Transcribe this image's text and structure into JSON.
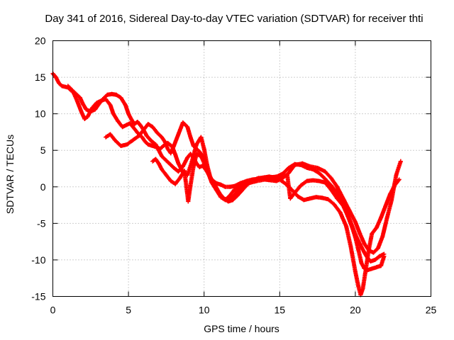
{
  "chart_data": {
    "type": "scatter",
    "title": "Day 341 of 2016, Sidereal Day-to-day VTEC variation (SDTVAR) for receiver thti",
    "xlabel": "GPS time / hours",
    "ylabel": "SDTVAR / TECUs",
    "xlim": [
      0,
      25
    ],
    "ylim": [
      -15,
      20
    ],
    "xticks": [
      0,
      5,
      10,
      15,
      20,
      25
    ],
    "yticks": [
      -15,
      -10,
      -5,
      0,
      5,
      10,
      15,
      20
    ],
    "grid": true,
    "marker": "plus",
    "color": "#ff0000",
    "series": [
      {
        "x": [
          0.0,
          0.2,
          0.4,
          0.6,
          0.8,
          1.0,
          1.2,
          1.5,
          1.8,
          2.0,
          2.2,
          2.5,
          2.8,
          3.0,
          3.3,
          3.6,
          3.9,
          4.2,
          4.5,
          4.8,
          5.0,
          5.2,
          5.4,
          5.6,
          5.8,
          6.0,
          6.2,
          6.5,
          6.8,
          7.0,
          7.2,
          7.5,
          7.8,
          8.0,
          8.3,
          8.6,
          8.9,
          9.1,
          9.3,
          9.5,
          9.7,
          9.9,
          10.1,
          10.3,
          10.5,
          10.8,
          11.1,
          11.4,
          11.7,
          12.0,
          12.4,
          12.8,
          13.2,
          13.6,
          14.0,
          14.4,
          14.8,
          15.2,
          15.6,
          16.0,
          16.4,
          16.8,
          17.2,
          17.6,
          18.0,
          18.4,
          18.8,
          19.2,
          19.5,
          19.8,
          20.0,
          20.2,
          20.4,
          20.6,
          20.8,
          21.0,
          21.3,
          21.6,
          21.9
        ],
        "y": [
          15.5,
          15.0,
          14.2,
          13.8,
          13.7,
          13.6,
          13.2,
          12.8,
          12.2,
          11.3,
          10.6,
          10.3,
          10.6,
          11.2,
          12.0,
          12.6,
          12.7,
          12.6,
          12.2,
          11.2,
          10.0,
          9.2,
          8.6,
          8.9,
          8.4,
          7.8,
          7.0,
          6.3,
          5.8,
          5.0,
          4.2,
          3.6,
          3.0,
          2.6,
          2.1,
          2.8,
          4.0,
          4.5,
          4.0,
          3.2,
          2.7,
          2.9,
          2.4,
          1.7,
          1.0,
          0.5,
          0.3,
          0.0,
          0.0,
          0.1,
          0.5,
          0.8,
          1.0,
          1.1,
          1.2,
          1.3,
          1.4,
          1.8,
          2.6,
          3.1,
          3.0,
          2.6,
          2.4,
          1.9,
          1.1,
          0.2,
          -0.8,
          -2.3,
          -3.8,
          -5.4,
          -6.5,
          -7.4,
          -8.2,
          -9.0,
          -9.7,
          -10.2,
          -10.0,
          -9.5,
          -9.2
        ]
      },
      {
        "x": [
          1.0,
          1.3,
          1.6,
          1.9,
          2.1,
          2.3,
          2.6,
          2.9,
          3.2,
          3.5,
          3.8,
          4.0,
          4.3,
          4.6,
          4.9,
          5.1,
          5.3,
          5.6,
          5.9,
          6.1,
          6.3,
          6.6,
          6.9,
          7.1,
          7.3,
          7.6,
          7.9,
          8.1,
          8.3,
          8.6,
          8.9,
          9.2,
          9.5,
          9.8,
          10.0,
          10.2,
          10.4,
          10.7,
          11.0,
          11.3,
          11.6,
          11.9,
          12.2,
          12.5,
          12.8,
          13.1,
          13.4,
          13.7,
          14.0,
          14.3,
          14.6,
          15.0,
          15.4,
          15.8,
          16.2,
          16.6,
          17.0,
          17.4,
          17.8,
          18.2,
          18.6,
          19.0,
          19.4,
          19.7,
          20.0,
          20.2,
          20.35,
          20.5,
          20.7,
          20.9,
          21.1,
          21.4,
          21.7,
          22.0,
          22.3,
          22.6,
          22.9
        ],
        "y": [
          13.8,
          13.2,
          11.8,
          10.2,
          9.3,
          9.6,
          10.8,
          11.5,
          11.8,
          12.0,
          11.2,
          10.0,
          9.0,
          8.2,
          8.5,
          8.7,
          8.2,
          7.4,
          6.8,
          6.2,
          5.8,
          5.6,
          5.4,
          5.2,
          5.6,
          6.0,
          5.5,
          4.4,
          3.2,
          2.0,
          1.6,
          3.5,
          5.8,
          6.8,
          5.2,
          3.0,
          1.4,
          0.3,
          -0.8,
          -1.6,
          -2.0,
          -1.8,
          -1.2,
          -0.5,
          0.2,
          0.7,
          1.0,
          1.2,
          1.3,
          1.4,
          1.3,
          1.0,
          0.4,
          -0.4,
          -1.3,
          -1.8,
          -1.6,
          -1.4,
          -1.5,
          -1.7,
          -2.4,
          -3.5,
          -5.4,
          -8.2,
          -11.6,
          -13.6,
          -14.8,
          -13.9,
          -11.2,
          -8.5,
          -6.4,
          -5.6,
          -4.2,
          -2.6,
          -1.0,
          0.2,
          1.0
        ]
      },
      {
        "x": [
          3.5,
          3.8,
          4.1,
          4.5,
          4.9,
          5.3,
          5.7,
          6.0,
          6.3,
          6.6,
          6.9,
          7.2,
          7.4,
          7.6,
          7.8,
          8.0,
          8.3,
          8.6,
          8.9,
          9.1,
          9.3,
          9.5,
          9.7,
          9.9,
          10.1,
          10.3,
          10.5,
          10.8,
          11.1,
          11.4,
          11.7,
          12.0,
          12.4,
          12.8,
          13.2,
          13.6,
          14.0,
          14.4,
          14.8,
          15.2,
          15.6,
          16.0,
          16.5,
          17.0,
          17.5,
          18.0,
          18.4,
          18.8,
          19.2,
          19.6,
          20.0,
          20.3,
          20.6,
          20.9,
          21.2,
          21.5,
          21.8,
          22.1,
          22.4,
          22.7,
          23.0
        ],
        "y": [
          6.8,
          7.2,
          6.4,
          5.6,
          5.8,
          6.4,
          7.0,
          7.8,
          8.6,
          8.2,
          7.4,
          6.8,
          6.2,
          5.2,
          4.6,
          5.6,
          7.2,
          8.8,
          8.2,
          6.8,
          5.6,
          5.2,
          4.8,
          4.2,
          3.2,
          1.8,
          0.6,
          -0.4,
          -1.4,
          -1.8,
          -1.2,
          -0.4,
          0.2,
          0.6,
          0.9,
          1.2,
          1.0,
          0.9,
          0.8,
          1.2,
          1.9,
          3.0,
          3.2,
          2.8,
          2.6,
          2.1,
          1.2,
          0.0,
          -1.6,
          -3.2,
          -4.8,
          -6.4,
          -7.8,
          -8.7,
          -9.0,
          -8.4,
          -6.8,
          -4.2,
          -1.8,
          1.6,
          3.5
        ]
      },
      {
        "x": [
          6.6,
          6.8,
          7.0,
          7.2,
          7.5,
          7.8,
          8.1,
          8.4,
          8.7,
          8.95,
          9.1,
          9.3,
          9.5,
          9.8,
          10.1,
          10.4,
          10.7,
          11.0,
          11.3,
          11.6,
          11.9,
          12.2,
          12.5,
          12.8,
          13.1,
          13.5,
          14.0,
          14.5,
          15.0,
          15.5,
          15.7,
          16.0,
          16.4,
          16.8,
          17.2,
          17.6,
          18.0,
          18.4,
          18.8,
          19.2,
          19.5,
          19.8,
          20.0,
          20.2,
          20.4,
          20.6,
          20.8,
          21.1,
          21.4,
          21.7,
          21.9
        ],
        "y": [
          3.5,
          3.8,
          3.2,
          2.4,
          1.6,
          0.8,
          0.4,
          1.2,
          2.2,
          -2.0,
          0.2,
          2.8,
          4.5,
          4.2,
          2.8,
          1.2,
          0.0,
          -1.0,
          -1.6,
          -1.8,
          -1.4,
          -0.6,
          0.0,
          0.4,
          0.6,
          0.8,
          1.0,
          1.1,
          1.3,
          1.6,
          -1.6,
          -0.8,
          0.2,
          0.8,
          0.9,
          0.8,
          0.6,
          -0.4,
          -1.6,
          -2.6,
          -4.0,
          -5.6,
          -6.9,
          -8.6,
          -10.4,
          -11.2,
          -11.4,
          -11.2,
          -11.0,
          -10.8,
          -9.5
        ]
      }
    ]
  }
}
